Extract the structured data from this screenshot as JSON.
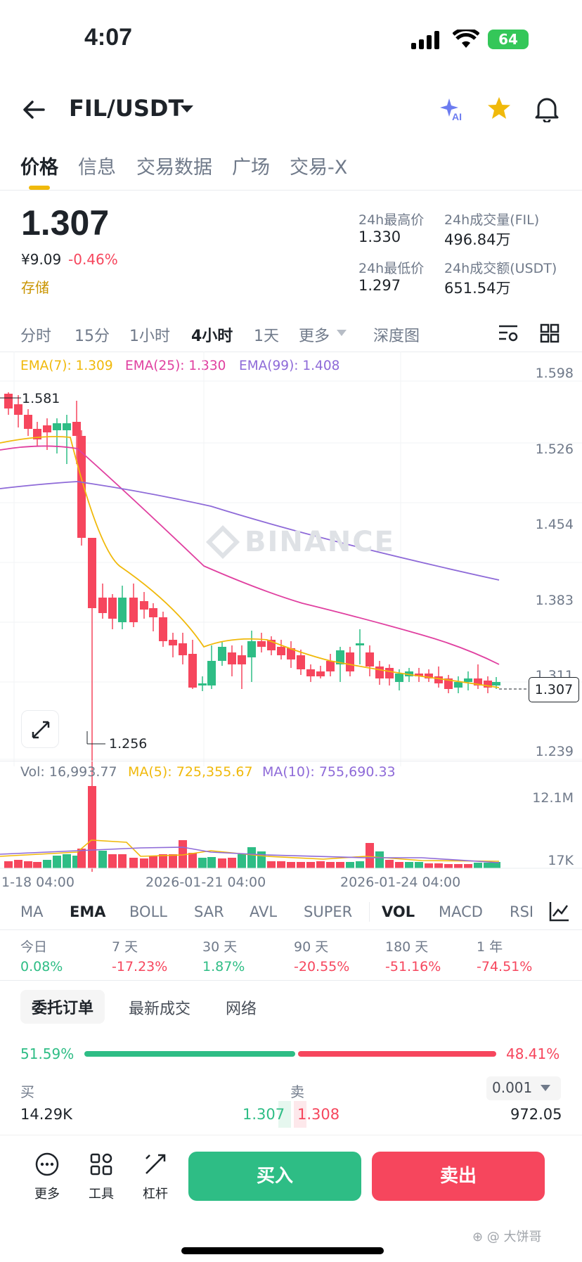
{
  "status": {
    "time": "4:07",
    "battery": "64"
  },
  "header": {
    "pair": "FIL/USDT"
  },
  "tabs": [
    "价格",
    "信息",
    "交易数据",
    "广场",
    "交易-X"
  ],
  "price": {
    "last": "1.307",
    "cny": "¥9.09",
    "change": "-0.46%",
    "tag": "存储",
    "high_label": "24h最高价",
    "high": "1.330",
    "low_label": "24h最低价",
    "low": "1.297",
    "vol_label": "24h成交量(FIL)",
    "vol": "496.84万",
    "amt_label": "24h成交额(USDT)",
    "amt": "651.54万"
  },
  "intervals": [
    "分时",
    "15分",
    "1小时",
    "4小时",
    "1天",
    "更多",
    "深度图"
  ],
  "legend": {
    "ema7": "EMA(7): 1.309",
    "ema25": "EMA(25): 1.330",
    "ema99": "EMA(99): 1.408"
  },
  "watermark": "BINANCE",
  "chart_data": {
    "type": "candlestick",
    "y_ticks": [
      "1.598",
      "1.526",
      "1.454",
      "1.383",
      "1.311",
      "1.239"
    ],
    "x_ticks": [
      "1-18 04:00",
      "2026-01-21 04:00",
      "2026-01-24 04:00"
    ],
    "high_marker": "1.581",
    "low_marker": "1.256",
    "current_price": "1.307",
    "vol_y_ticks": [
      "12.1M",
      "17K"
    ],
    "colors": {
      "up": "#2ebd85",
      "down": "#f6465d",
      "ema7": "#f0b90b",
      "ema25": "#e040a0",
      "ema99": "#8e6ad8"
    }
  },
  "volume": {
    "vol": "Vol: 16,993.77",
    "ma5": "MA(5): 725,355.67",
    "ma10": "MA(10): 755,690.33"
  },
  "indicators": [
    "MA",
    "EMA",
    "BOLL",
    "SAR",
    "AVL",
    "SUPER",
    "VOL",
    "MACD",
    "RSI"
  ],
  "performance": [
    {
      "label": "今日",
      "value": "0.08%"
    },
    {
      "label": "7 天",
      "value": "-17.23%"
    },
    {
      "label": "30 天",
      "value": "1.87%"
    },
    {
      "label": "90 天",
      "value": "-20.55%"
    },
    {
      "label": "180 天",
      "value": "-51.16%"
    },
    {
      "label": "1 年",
      "value": "-74.51%"
    }
  ],
  "order_tabs": [
    "委托订单",
    "最新成交",
    "网络"
  ],
  "ratio": {
    "buy": "51.59%",
    "sell": "48.41%"
  },
  "book": {
    "buy_label": "买",
    "sell_label": "卖",
    "precision": "0.001",
    "bid_qty": "14.29K",
    "bid": "1.307",
    "ask": "1.308",
    "ask_qty": "972.05"
  },
  "bottom": {
    "more": "更多",
    "tools": "工具",
    "leverage": "杠杆",
    "buy": "买入",
    "sell": "卖出"
  },
  "footer_watermark": "大饼哥"
}
